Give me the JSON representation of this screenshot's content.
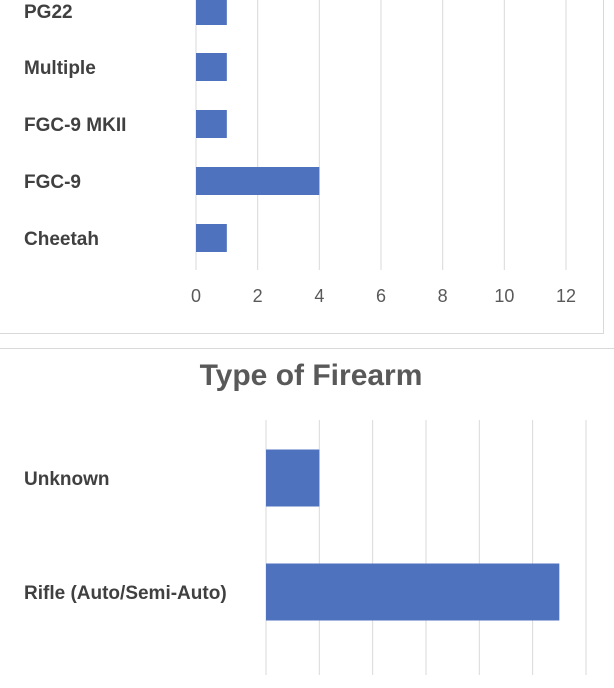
{
  "chart_data": [
    {
      "type": "bar",
      "orientation": "horizontal",
      "title": "",
      "categories": [
        "PG22",
        "Multiple",
        "FGC-9 MKII",
        "FGC-9",
        "Cheetah"
      ],
      "values": [
        1,
        1,
        1,
        4,
        1
      ],
      "xlim": [
        0,
        12
      ],
      "xticks": [
        0,
        2,
        4,
        6,
        8,
        10,
        12
      ],
      "xlabel": "",
      "ylabel": "",
      "grid": true,
      "bar_color": "#4f72be"
    },
    {
      "type": "bar",
      "orientation": "horizontal",
      "title": "Type of Firearm",
      "categories": [
        "Unknown",
        "Rifle (Auto/Semi-Auto)"
      ],
      "values": [
        1,
        5.5
      ],
      "xlabel": "",
      "ylabel": "",
      "grid": true,
      "bar_color": "#4f72be"
    }
  ]
}
